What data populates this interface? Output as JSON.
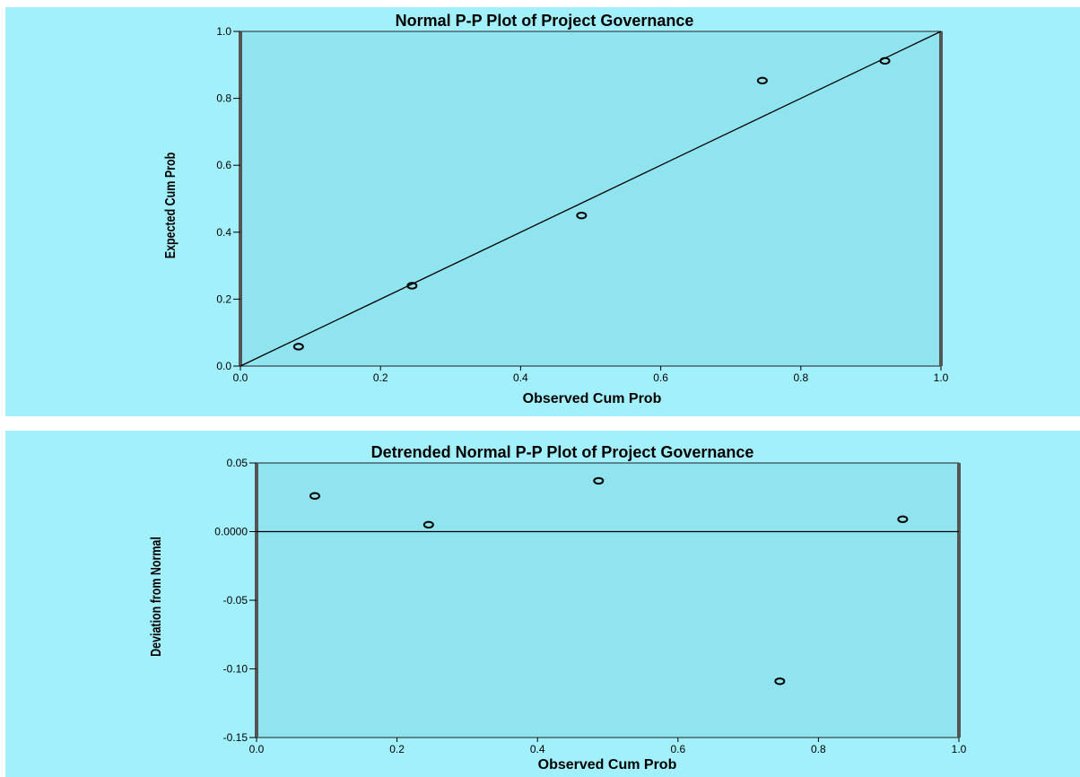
{
  "chart_data": [
    {
      "type": "scatter",
      "title": "Normal P-P Plot of Project Governance",
      "xlabel": "Observed Cum Prob",
      "ylabel": "Expected Cum Prob",
      "xlim": [
        0.0,
        1.0
      ],
      "ylim": [
        0.0,
        1.0
      ],
      "xticks": [
        "0.0",
        "0.2",
        "0.4",
        "0.6",
        "0.8",
        "1.0"
      ],
      "yticks": [
        "0.0",
        "0.2",
        "0.4",
        "0.6",
        "0.8",
        "1.0"
      ],
      "xtick_values": [
        0.0,
        0.2,
        0.4,
        0.6,
        0.8,
        1.0
      ],
      "ytick_values": [
        0.0,
        0.2,
        0.4,
        0.6,
        0.8,
        1.0
      ],
      "reference_line": {
        "from": [
          0,
          0
        ],
        "to": [
          1,
          1
        ]
      },
      "points": [
        {
          "x": 0.083,
          "y": 0.058
        },
        {
          "x": 0.245,
          "y": 0.24
        },
        {
          "x": 0.487,
          "y": 0.45
        },
        {
          "x": 0.745,
          "y": 0.853
        },
        {
          "x": 0.92,
          "y": 0.912
        }
      ],
      "grid": false
    },
    {
      "type": "scatter",
      "title": "Detrended Normal P-P Plot of Project Governance",
      "xlabel": "Observed Cum Prob",
      "ylabel": "Deviation from Normal",
      "xlim": [
        0.0,
        1.0
      ],
      "ylim": [
        -0.15,
        0.05
      ],
      "xticks": [
        "0.0",
        "0.2",
        "0.4",
        "0.6",
        "0.8",
        "1.0"
      ],
      "yticks": [
        "-0.15",
        "-0.10",
        "-0.05",
        "0.0000",
        "0.05"
      ],
      "xtick_values": [
        0.0,
        0.2,
        0.4,
        0.6,
        0.8,
        1.0
      ],
      "ytick_values": [
        -0.15,
        -0.1,
        -0.05,
        0.0,
        0.05
      ],
      "reference_line": {
        "y": 0.0
      },
      "points": [
        {
          "x": 0.083,
          "y": 0.026
        },
        {
          "x": 0.245,
          "y": 0.005
        },
        {
          "x": 0.487,
          "y": 0.037
        },
        {
          "x": 0.745,
          "y": -0.109
        },
        {
          "x": 0.92,
          "y": 0.009
        }
      ],
      "grid": false
    }
  ],
  "colors": {
    "panel_background": "#a2f0fb",
    "plot_background": "#8fe4ef",
    "marker": "#000000",
    "line": "#000000"
  }
}
